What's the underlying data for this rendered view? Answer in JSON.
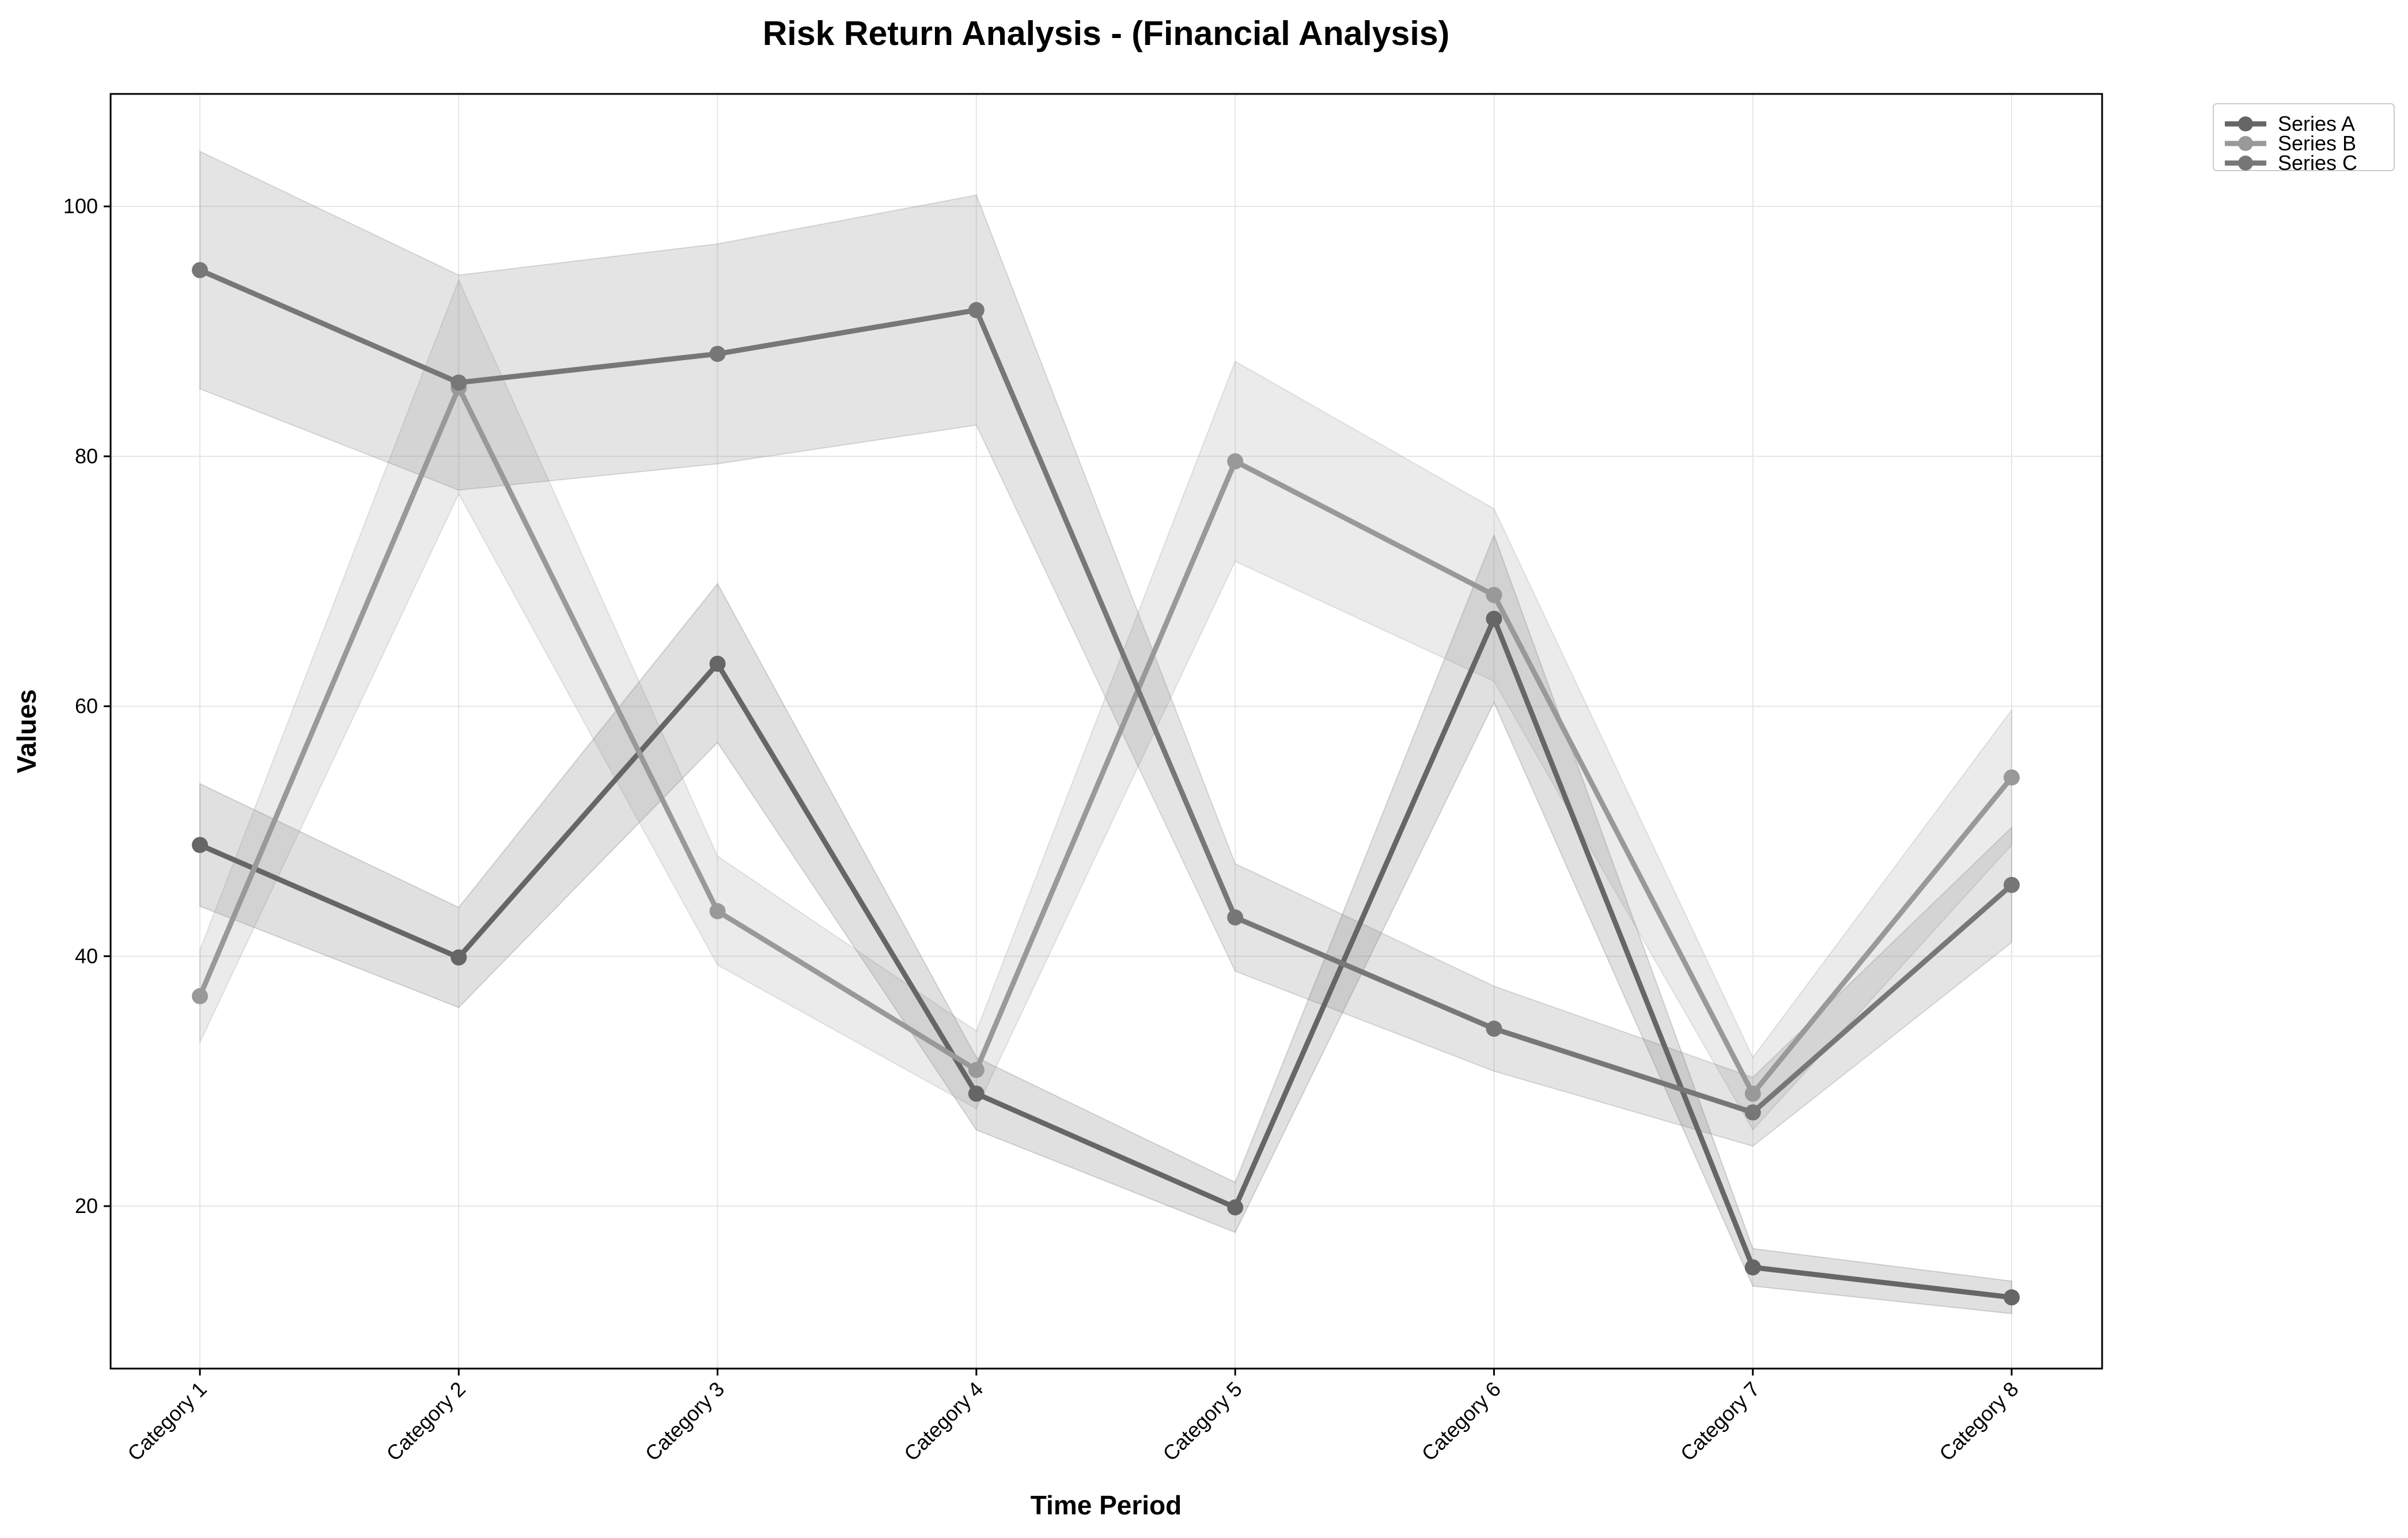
{
  "chart_data": {
    "type": "line",
    "title": "Risk Return Analysis - (Financial Analysis)",
    "xlabel": "Time Period",
    "ylabel": "Values",
    "categories": [
      "Category 1",
      "Category 2",
      "Category 3",
      "Category 4",
      "Category 5",
      "Category 6",
      "Category 7",
      "Category 8"
    ],
    "ylim": [
      7,
      109
    ],
    "yticks": [
      20,
      40,
      60,
      80,
      100
    ],
    "grid": true,
    "legend_position": "outside-top-right",
    "series": [
      {
        "name": "Series A",
        "color": "#666666",
        "values": [
          48.9,
          39.9,
          63.4,
          29.0,
          19.9,
          67.0,
          15.1,
          12.7
        ],
        "lower": [
          44.0,
          35.9,
          57.1,
          26.1,
          17.9,
          60.3,
          13.6,
          11.4
        ],
        "upper": [
          53.8,
          43.9,
          69.8,
          31.9,
          21.9,
          73.7,
          16.6,
          14.0
        ]
      },
      {
        "name": "Series B",
        "color": "#999999",
        "values": [
          36.8,
          85.5,
          43.6,
          30.9,
          79.6,
          68.9,
          29.0,
          54.3
        ],
        "lower": [
          33.1,
          77.0,
          39.3,
          27.8,
          71.6,
          62.0,
          26.1,
          48.9
        ],
        "upper": [
          40.5,
          94.1,
          48.0,
          34.0,
          87.6,
          75.8,
          31.9,
          59.7
        ]
      },
      {
        "name": "Series C",
        "color": "#777777",
        "values": [
          94.9,
          85.9,
          88.2,
          91.7,
          43.1,
          34.2,
          27.5,
          45.7
        ],
        "lower": [
          85.4,
          77.3,
          79.4,
          82.5,
          38.8,
          30.8,
          24.8,
          41.1
        ],
        "upper": [
          104.4,
          94.5,
          97.0,
          100.9,
          47.4,
          37.6,
          30.3,
          50.3
        ]
      }
    ]
  }
}
